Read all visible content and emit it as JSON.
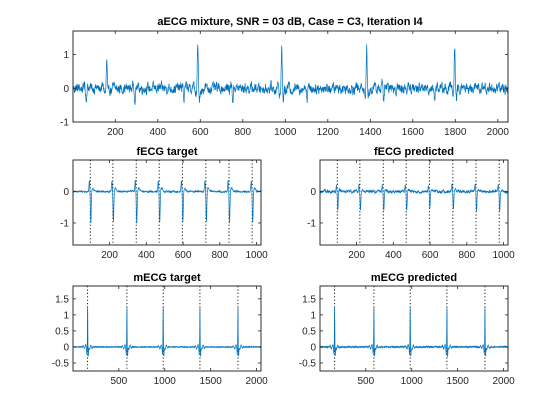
{
  "chart_data": [
    {
      "id": "mix",
      "type": "line",
      "title": "aECG mixture, SNR = 03 dB, Case = C3, Iteration I4",
      "xlabel": "",
      "ylabel": "",
      "xlim": [
        1,
        2048
      ],
      "ylim": [
        -1,
        1.7
      ],
      "xticks": [
        200,
        400,
        600,
        800,
        1000,
        1200,
        1400,
        1600,
        1800,
        2000
      ],
      "yticks": [
        -1,
        0,
        1
      ],
      "grid": false,
      "vlines": [],
      "series": [
        {
          "color": "#0072bd",
          "n": 2048,
          "baseline": 0.0,
          "noise": 0.17,
          "beats": [
            {
              "x": 160,
              "amp": 0.85,
              "sign": 1,
              "kind": "m"
            },
            {
              "x": 588,
              "amp": 1.4,
              "sign": 1,
              "kind": "m"
            },
            {
              "x": 983,
              "amp": 1.35,
              "sign": 1,
              "kind": "m"
            },
            {
              "x": 1383,
              "amp": 1.3,
              "sign": 1,
              "kind": "m"
            },
            {
              "x": 1797,
              "amp": 1.35,
              "sign": 1,
              "kind": "m"
            },
            {
              "x": 60,
              "amp": 0.35,
              "sign": -1,
              "kind": "f"
            },
            {
              "x": 290,
              "amp": 0.35,
              "sign": -1,
              "kind": "f"
            },
            {
              "x": 520,
              "amp": 0.35,
              "sign": -1,
              "kind": "f"
            },
            {
              "x": 750,
              "amp": 0.35,
              "sign": -1,
              "kind": "f"
            },
            {
              "x": 1100,
              "amp": 0.35,
              "sign": -1,
              "kind": "f"
            },
            {
              "x": 1460,
              "amp": 0.45,
              "sign": -1,
              "kind": "f"
            },
            {
              "x": 1700,
              "amp": 0.35,
              "sign": -1,
              "kind": "f"
            }
          ]
        }
      ]
    },
    {
      "id": "ft",
      "type": "line",
      "title": "fECG target",
      "xlabel": "",
      "ylabel": "",
      "xlim": [
        1,
        1024
      ],
      "ylim": [
        -1.7,
        1.0
      ],
      "xticks": [
        200,
        400,
        600,
        800,
        1000
      ],
      "yticks": [
        -1,
        0
      ],
      "grid": false,
      "vlines": [
        95,
        218,
        345,
        470,
        596,
        724,
        850,
        976
      ],
      "series": [
        {
          "color": "#0072bd",
          "n": 1024,
          "baseline": 0.0,
          "noise": 0.03,
          "beats": [
            {
              "x": 95,
              "amp": 1.0,
              "sign": -1,
              "kind": "f"
            },
            {
              "x": 218,
              "amp": 1.0,
              "sign": -1,
              "kind": "f"
            },
            {
              "x": 345,
              "amp": 1.0,
              "sign": -1,
              "kind": "f"
            },
            {
              "x": 470,
              "amp": 1.0,
              "sign": -1,
              "kind": "f"
            },
            {
              "x": 596,
              "amp": 1.0,
              "sign": -1,
              "kind": "f"
            },
            {
              "x": 724,
              "amp": 1.0,
              "sign": -1,
              "kind": "f"
            },
            {
              "x": 850,
              "amp": 1.0,
              "sign": -1,
              "kind": "f"
            },
            {
              "x": 976,
              "amp": 1.0,
              "sign": -1,
              "kind": "f"
            }
          ]
        }
      ]
    },
    {
      "id": "fp",
      "type": "line",
      "title": "fECG predicted",
      "xlabel": "",
      "ylabel": "",
      "xlim": [
        1,
        1024
      ],
      "ylim": [
        -1.7,
        1.0
      ],
      "xticks": [
        200,
        400,
        600,
        800,
        1000
      ],
      "yticks": [
        -1,
        0
      ],
      "grid": false,
      "vlines": [
        95,
        218,
        345,
        470,
        596,
        724,
        850,
        976
      ],
      "series": [
        {
          "color": "#0072bd",
          "n": 1024,
          "baseline": 0.0,
          "noise": 0.05,
          "beats": [
            {
              "x": 95,
              "amp": 0.6,
              "sign": -1,
              "kind": "f"
            },
            {
              "x": 218,
              "amp": 0.6,
              "sign": -1,
              "kind": "f"
            },
            {
              "x": 345,
              "amp": 0.6,
              "sign": -1,
              "kind": "f"
            },
            {
              "x": 470,
              "amp": 0.6,
              "sign": -1,
              "kind": "f"
            },
            {
              "x": 596,
              "amp": 0.6,
              "sign": -1,
              "kind": "f"
            },
            {
              "x": 724,
              "amp": 0.6,
              "sign": -1,
              "kind": "f"
            },
            {
              "x": 850,
              "amp": 0.6,
              "sign": -1,
              "kind": "f"
            },
            {
              "x": 976,
              "amp": 0.6,
              "sign": -1,
              "kind": "f"
            }
          ]
        }
      ]
    },
    {
      "id": "mt",
      "type": "line",
      "title": "mECG target",
      "xlabel": "",
      "ylabel": "",
      "xlim": [
        1,
        2048
      ],
      "ylim": [
        -0.75,
        1.9
      ],
      "xticks": [
        500,
        1000,
        1500,
        2000
      ],
      "yticks": [
        -0.5,
        0,
        0.5,
        1,
        1.5
      ],
      "grid": false,
      "vlines": [
        160,
        588,
        983,
        1383,
        1797
      ],
      "series": [
        {
          "color": "#0072bd",
          "n": 2048,
          "baseline": 0.0,
          "noise": 0.012,
          "beats": [
            {
              "x": 160,
              "amp": 1.3,
              "sign": 1,
              "kind": "m"
            },
            {
              "x": 588,
              "amp": 1.3,
              "sign": 1,
              "kind": "m"
            },
            {
              "x": 983,
              "amp": 1.3,
              "sign": 1,
              "kind": "m"
            },
            {
              "x": 1383,
              "amp": 1.3,
              "sign": 1,
              "kind": "m"
            },
            {
              "x": 1797,
              "amp": 1.3,
              "sign": 1,
              "kind": "m"
            }
          ]
        }
      ]
    },
    {
      "id": "mp",
      "type": "line",
      "title": "mECG predicted",
      "xlabel": "",
      "ylabel": "",
      "xlim": [
        1,
        2048
      ],
      "ylim": [
        -0.75,
        1.9
      ],
      "xticks": [
        500,
        1000,
        1500,
        2000
      ],
      "yticks": [
        -0.5,
        0,
        0.5,
        1,
        1.5
      ],
      "grid": false,
      "vlines": [
        160,
        588,
        983,
        1383,
        1797
      ],
      "series": [
        {
          "color": "#0072bd",
          "n": 2048,
          "baseline": 0.0,
          "noise": 0.018,
          "beats": [
            {
              "x": 160,
              "amp": 1.3,
              "sign": 1,
              "kind": "m"
            },
            {
              "x": 588,
              "amp": 1.3,
              "sign": 1,
              "kind": "m"
            },
            {
              "x": 983,
              "amp": 1.3,
              "sign": 1,
              "kind": "m"
            },
            {
              "x": 1383,
              "amp": 1.3,
              "sign": 1,
              "kind": "m"
            },
            {
              "x": 1797,
              "amp": 1.3,
              "sign": 1,
              "kind": "m"
            }
          ]
        }
      ]
    }
  ]
}
